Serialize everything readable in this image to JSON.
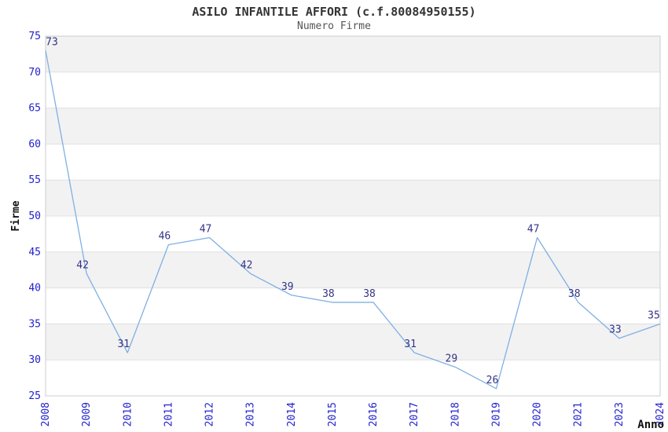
{
  "header": {
    "title": "ASILO INFANTILE AFFORI (c.f.80084950155)",
    "subtitle": "Numero Firme"
  },
  "chart_data": {
    "type": "line",
    "title": "ASILO INFANTILE AFFORI (c.f.80084950155)",
    "subtitle": "Numero Firme",
    "xlabel": "Anno",
    "ylabel": "Firme",
    "categories": [
      "2008",
      "2009",
      "2010",
      "2011",
      "2012",
      "2013",
      "2014",
      "2015",
      "2016",
      "2017",
      "2018",
      "2019",
      "2020",
      "2021",
      "2023",
      "2024"
    ],
    "values": [
      73,
      42,
      31,
      46,
      47,
      42,
      39,
      38,
      38,
      31,
      29,
      26,
      47,
      38,
      33,
      35
    ],
    "ylim": [
      25,
      75
    ],
    "yticks": [
      25,
      30,
      35,
      40,
      45,
      50,
      55,
      60,
      65,
      70,
      75
    ],
    "grid": true,
    "band_fill_ranges": [
      [
        30,
        35
      ],
      [
        40,
        45
      ],
      [
        50,
        55
      ],
      [
        60,
        65
      ],
      [
        70,
        75
      ]
    ],
    "legend": "none",
    "colors": {
      "line": "#7fb0e3",
      "tick_label": "#2222cc",
      "point_label": "#333388",
      "band": "#f2f2f2",
      "grid": "#e0e0e0",
      "border": "#cccccc",
      "axis_title": "#111111"
    }
  }
}
